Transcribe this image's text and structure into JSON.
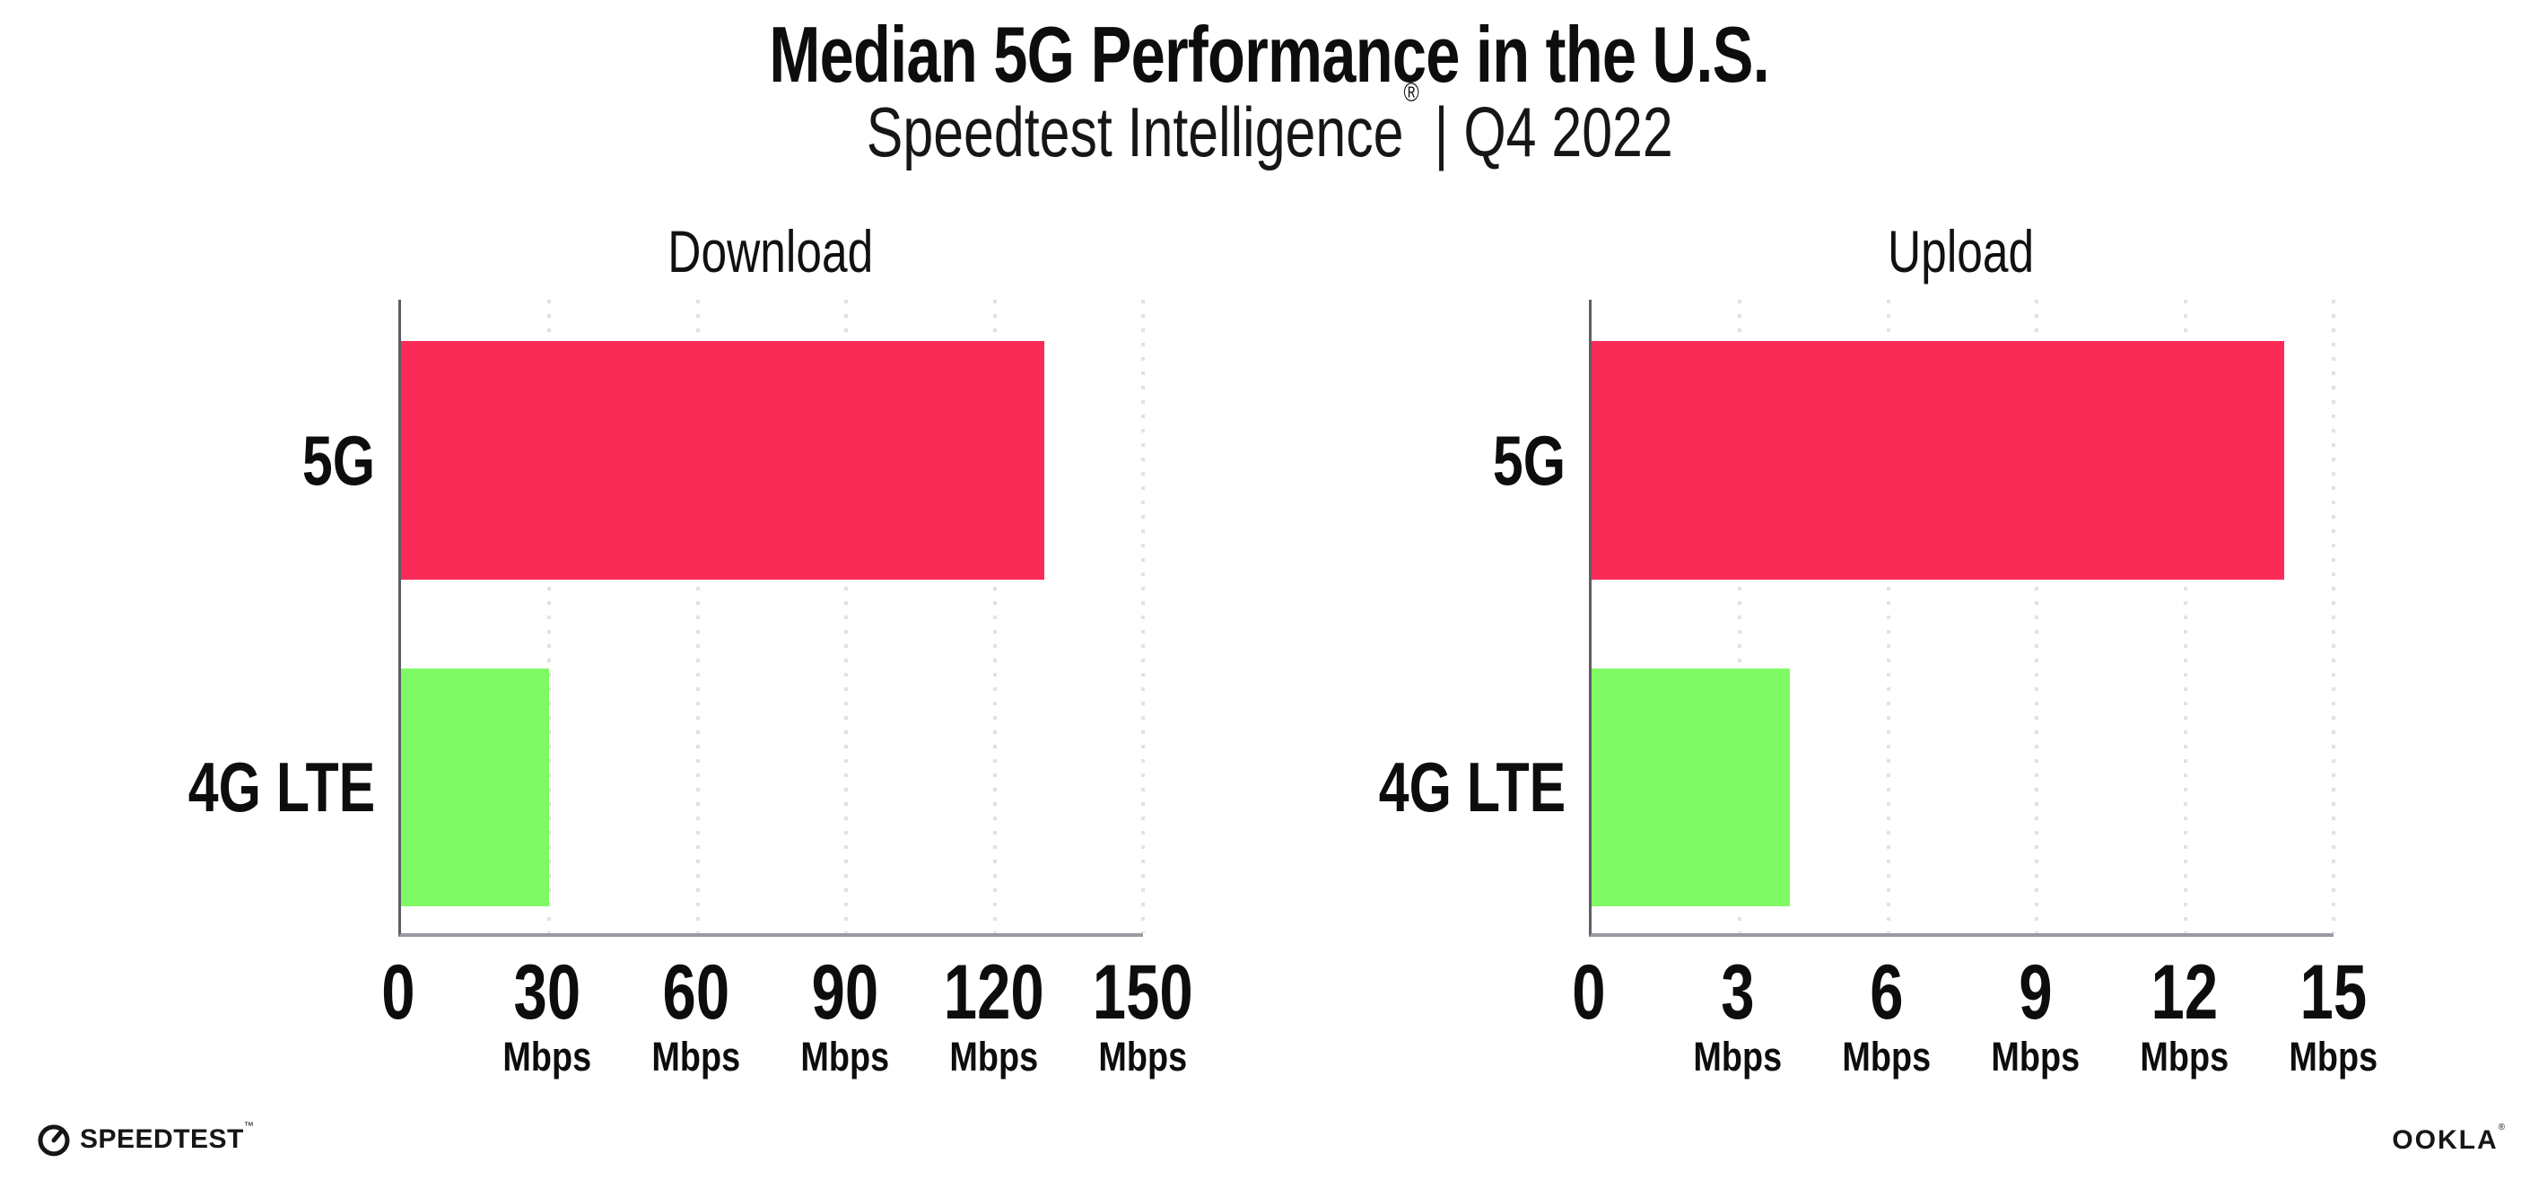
{
  "title": "Median 5G Performance in the U.S.",
  "subtitle": {
    "brand": "Speedtest Intelligence",
    "registered": "®",
    "period": " | Q4 2022"
  },
  "chart_data": [
    {
      "type": "bar",
      "orientation": "horizontal",
      "title": "Download",
      "categories": [
        "5G",
        "4G LTE"
      ],
      "values": [
        130,
        30
      ],
      "unit": "Mbps",
      "xlim": [
        0,
        150
      ],
      "xticks": [
        0,
        30,
        60,
        90,
        120,
        150
      ],
      "bar_colors": [
        "#FB2B57",
        "#80FA64"
      ],
      "grid": "vertical-dotted",
      "legend": "none"
    },
    {
      "type": "bar",
      "orientation": "horizontal",
      "title": "Upload",
      "categories": [
        "5G",
        "4G LTE"
      ],
      "values": [
        14,
        4
      ],
      "unit": "Mbps",
      "xlim": [
        0,
        15
      ],
      "xticks": [
        0,
        3,
        6,
        9,
        12,
        15
      ],
      "bar_colors": [
        "#FB2B57",
        "#80FA64"
      ],
      "grid": "vertical-dotted",
      "legend": "none"
    }
  ],
  "footer": {
    "speedtest_label": "SPEEDTEST",
    "speedtest_tm": "™",
    "ookla_label": "OOKLA",
    "ookla_reg": "®"
  },
  "colors": {
    "bar_5g": "#FB2B57",
    "bar_4g_lte": "#80FA64",
    "gridline": "#E1E1EA",
    "x_axis": "#9A9AA2",
    "y_spine": "#5E5E66",
    "text": "#0D0D0D",
    "background": "#FFFFFF"
  }
}
